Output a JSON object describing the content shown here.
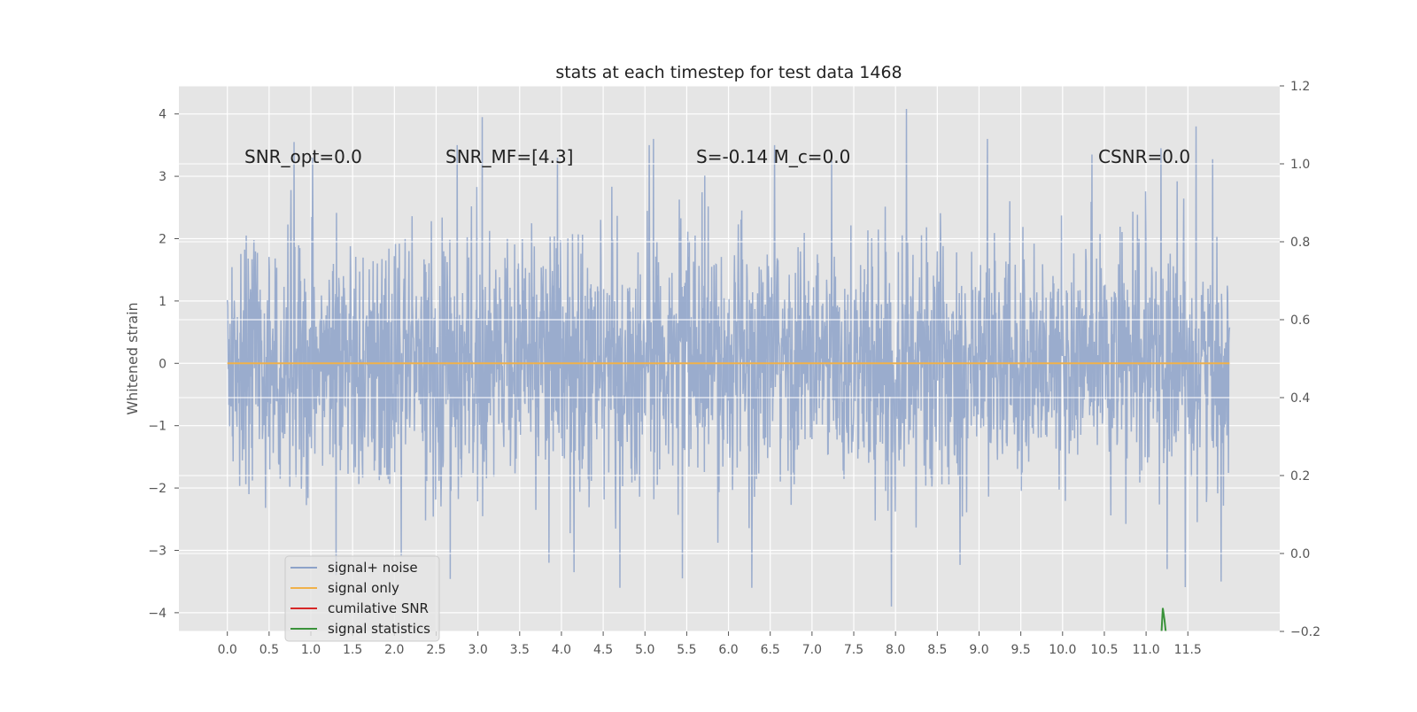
{
  "chart_data": {
    "type": "line",
    "title": "stats at each timestep for test data 1468",
    "xlabel": "",
    "ylabel": "Whitened strain",
    "ylabel_right": "",
    "xlim": [
      -0.58,
      12.6
    ],
    "ylim": [
      -4.3,
      4.45
    ],
    "ylim_right": [
      -0.2,
      1.2
    ],
    "xticks": [
      0.0,
      0.5,
      1.0,
      1.5,
      2.0,
      2.5,
      3.0,
      3.5,
      4.0,
      4.5,
      5.0,
      5.5,
      6.0,
      6.5,
      7.0,
      7.5,
      8.0,
      8.5,
      9.0,
      9.5,
      10.0,
      10.5,
      11.0,
      11.5
    ],
    "xtick_labels": [
      "0.0",
      "0.5",
      "1.0",
      "1.5",
      "2.0",
      "2.5",
      "3.0",
      "3.5",
      "4.0",
      "4.5",
      "5.0",
      "5.5",
      "6.0",
      "6.5",
      "7.0",
      "7.5",
      "8.0",
      "8.5",
      "9.0",
      "9.5",
      "10.0",
      "10.5",
      "11.0",
      "11.5"
    ],
    "yticks": [
      -4,
      -3,
      -2,
      -1,
      0,
      1,
      2,
      3,
      4
    ],
    "ytick_labels": [
      "−4",
      "−3",
      "−2",
      "−1",
      "0",
      "1",
      "2",
      "3",
      "4"
    ],
    "yticks_right": [
      -0.2,
      0.0,
      0.2,
      0.4,
      0.6,
      0.8,
      1.0,
      1.2
    ],
    "ytick_labels_right": [
      "−0.2",
      "0.0",
      "0.2",
      "0.4",
      "0.6",
      "0.8",
      "1.0",
      "1.2"
    ],
    "grid": true,
    "legend_placement": "lower-left",
    "series": [
      {
        "name": "signal+ noise",
        "color": "#8da2c9",
        "axis": "left",
        "kind": "noise",
        "x_range": [
          0.0,
          12.0
        ],
        "std": 0.98,
        "ymin": -3.9,
        "ymax": 4.08,
        "peaks": [
          {
            "x": 0.8,
            "y": 3.55
          },
          {
            "x": 1.02,
            "y": 3.3
          },
          {
            "x": 2.75,
            "y": 3.5
          },
          {
            "x": 3.05,
            "y": 3.95
          },
          {
            "x": 3.95,
            "y": 3.3
          },
          {
            "x": 5.1,
            "y": 3.6
          },
          {
            "x": 5.05,
            "y": 3.5
          },
          {
            "x": 6.55,
            "y": 3.5
          },
          {
            "x": 8.13,
            "y": 4.08
          },
          {
            "x": 9.1,
            "y": 3.6
          },
          {
            "x": 10.35,
            "y": 3.35
          },
          {
            "x": 11.18,
            "y": 3.45
          },
          {
            "x": 11.6,
            "y": 3.8
          },
          {
            "x": 1.3,
            "y": -3.4
          },
          {
            "x": 3.85,
            "y": -3.2
          },
          {
            "x": 4.15,
            "y": -3.35
          },
          {
            "x": 4.7,
            "y": -3.6
          },
          {
            "x": 5.45,
            "y": -3.45
          },
          {
            "x": 6.28,
            "y": -3.6
          },
          {
            "x": 7.95,
            "y": -3.9
          },
          {
            "x": 11.25,
            "y": -3.3
          },
          {
            "x": 11.9,
            "y": -3.5
          }
        ]
      },
      {
        "name": "signal only",
        "color": "#f0b14a",
        "axis": "left",
        "kind": "flat",
        "x": [
          0.0,
          12.0
        ],
        "y": [
          0.0,
          0.0
        ]
      },
      {
        "name": "cumilative SNR",
        "color": "#d62728",
        "axis": "right",
        "kind": "line",
        "x": [],
        "y": []
      },
      {
        "name": "signal statistics",
        "color": "#3a923a",
        "axis": "right",
        "kind": "line",
        "x": [
          11.18,
          11.2,
          11.22,
          11.24
        ],
        "y": [
          -0.22,
          -0.14,
          -0.17,
          -0.21
        ]
      }
    ],
    "annotations": [
      {
        "id": "snr-opt",
        "text": "SNR_opt=0.0"
      },
      {
        "id": "snr-mf",
        "text": "SNR_MF=[4.3]"
      },
      {
        "id": "s-mc",
        "text": "S=-0.14 M_c=0.0"
      },
      {
        "id": "csnr",
        "text": "CSNR=0.0"
      }
    ]
  }
}
